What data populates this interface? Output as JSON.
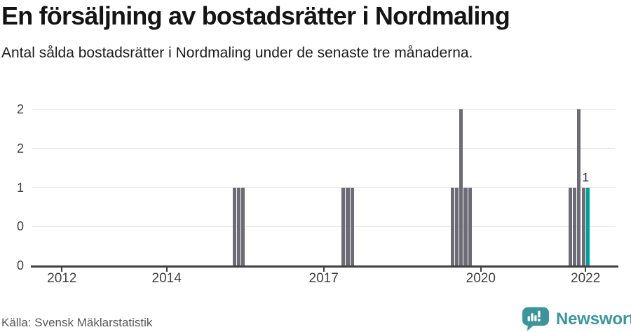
{
  "header": {
    "title": "En försäljning av bostadsrätter i Nordmaling",
    "subtitle": "Antal sålda bostadsrätter i Nordmaling under de senaste tre månaderna."
  },
  "chart_data": {
    "type": "bar",
    "title": "En försäljning av bostadsrätter i Nordmaling",
    "subtitle": "Antal sålda bostadsrätter i Nordmaling under de senaste tre månaderna.",
    "xlabel": "",
    "ylabel": "",
    "grid": true,
    "legend": "none",
    "x_axis": {
      "tick_years": [
        2012,
        2014,
        2017,
        2020,
        2022
      ],
      "domain_years": [
        2011.42,
        2022.56
      ]
    },
    "y_axis": {
      "ylim": [
        0,
        2
      ],
      "ticks": [
        0,
        0.5,
        1,
        1.5,
        2
      ],
      "tick_labels_bottom_to_top": [
        "0",
        "0",
        "1",
        "2",
        "2"
      ]
    },
    "bar_color": "#6d6b75",
    "highlight_color": "#00a298",
    "points": [
      {
        "month": "2015-04",
        "value": 1
      },
      {
        "month": "2015-05",
        "value": 1
      },
      {
        "month": "2015-06",
        "value": 1
      },
      {
        "month": "2017-05",
        "value": 1
      },
      {
        "month": "2017-06",
        "value": 1
      },
      {
        "month": "2017-07",
        "value": 1
      },
      {
        "month": "2019-06",
        "value": 1
      },
      {
        "month": "2019-07",
        "value": 1
      },
      {
        "month": "2019-08",
        "value": 2
      },
      {
        "month": "2019-09",
        "value": 1
      },
      {
        "month": "2019-10",
        "value": 1
      },
      {
        "month": "2021-09",
        "value": 1
      },
      {
        "month": "2021-10",
        "value": 1
      },
      {
        "month": "2021-11",
        "value": 2
      },
      {
        "month": "2021-12",
        "value": 1
      },
      {
        "month": "2022-01",
        "value": 1,
        "highlight": true,
        "label": "1"
      }
    ]
  },
  "footer": {
    "source": "Källa: Svensk Mäklarstatistik",
    "brand": "Newsworthy"
  },
  "colors": {
    "bar": "#6d6b75",
    "highlight": "#00a298",
    "brand_teal": "#3d959b",
    "axis": "#404040",
    "grid": "#e9e9e9"
  },
  "icons": {
    "logo": "newsworthy-speech-bubble-bar-chart-icon"
  }
}
